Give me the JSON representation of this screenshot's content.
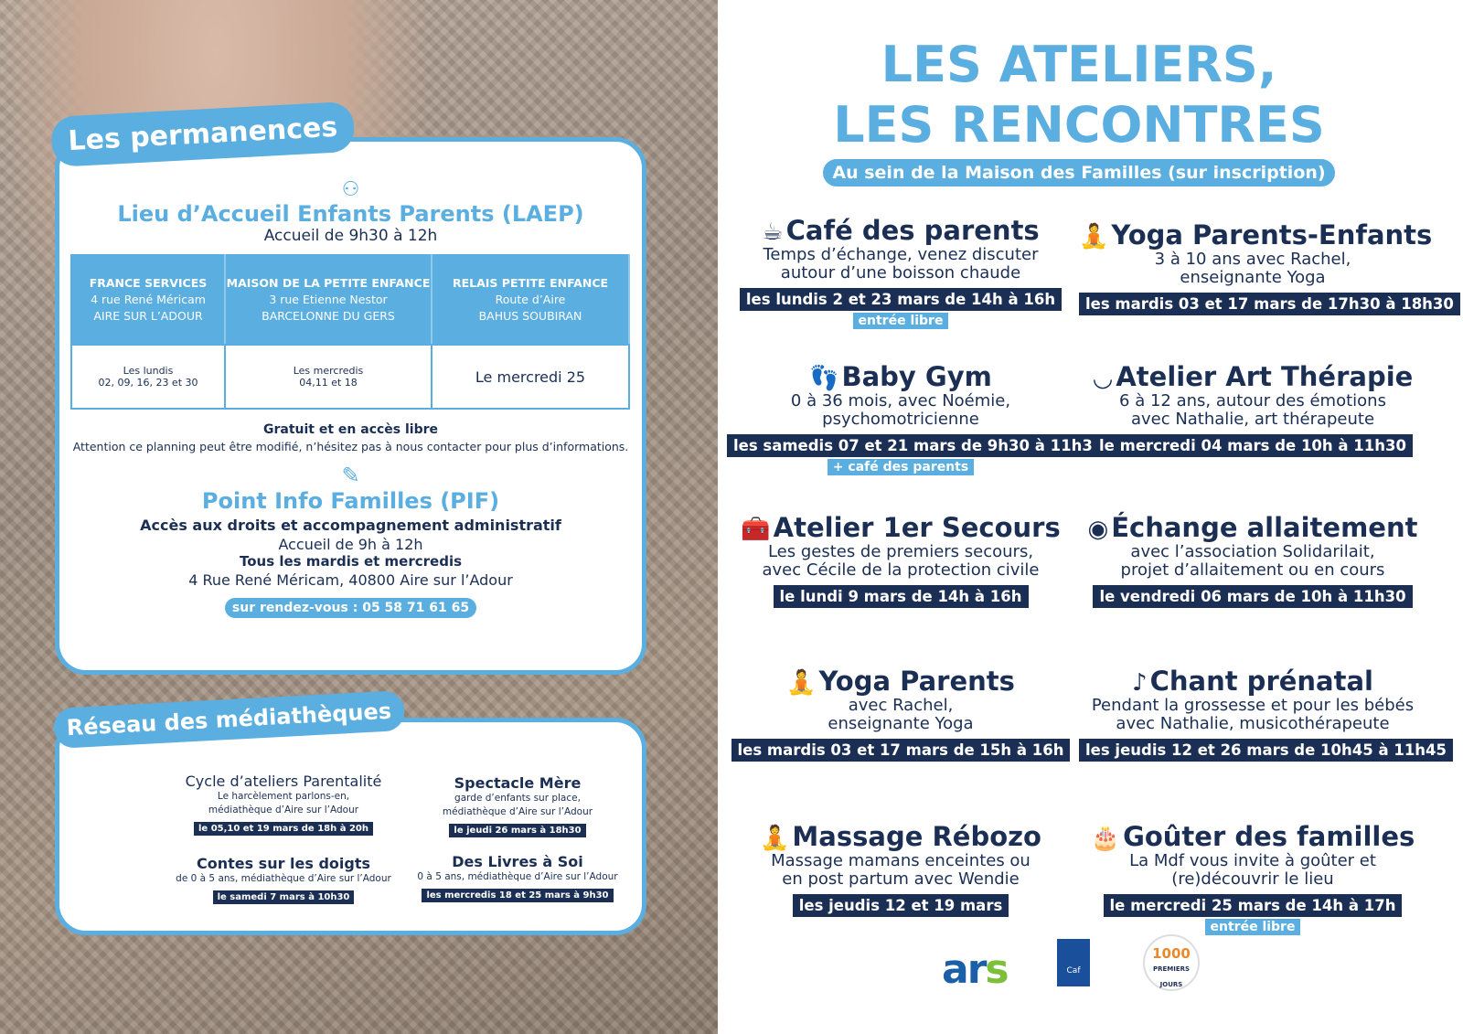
{
  "permanences": {
    "tab": "Les permanences",
    "laep": {
      "icon": "people-network-icon",
      "title": "Lieu d’Accueil Enfants Parents (LAEP)",
      "hours": "Accueil de 9h30 à 12h",
      "columns": [
        {
          "name": "FRANCE SERVICES",
          "address": "4 rue René Méricam",
          "city": "AIRE SUR L’ADOUR",
          "dates_line1": "Les lundis",
          "dates_line2": "02, 09, 16, 23 et 30"
        },
        {
          "name": "MAISON DE LA PETITE ENFANCE",
          "address": "3 rue Etienne Nestor",
          "city": "BARCELONNE DU GERS",
          "dates_line1": "Les mercredis",
          "dates_line2": "04,11 et 18"
        },
        {
          "name": "RELAIS PETITE ENFANCE",
          "address": "Route d’Aire",
          "city": "BAHUS SOUBIRAN",
          "dates_line1": "Le mercredi 25",
          "dates_line2": ""
        }
      ],
      "free": "Gratuit et en accès libre",
      "notice": "Attention ce planning peut être modifié, n’hésitez pas à nous contacter pour plus d’informations."
    },
    "pif": {
      "icon": "document-pen-icon",
      "title": "Point Info Familles (PIF)",
      "subtitle": "Accès aux droits et accompagnement administratif",
      "hours": "Accueil de 9h à 12h",
      "days": "Tous les mardis et mercredis",
      "address": "4 Rue René Méricam, 40800 Aire sur l’Adour",
      "appointment": "sur rendez-vous : 05 58 71 61 65"
    }
  },
  "mediatheques": {
    "tab": "Réseau des médiathèques",
    "items": [
      {
        "title": "Cycle d’ateliers Parentalité",
        "desc1": "Le harcèlement parlons-en,",
        "desc2": "médiathèque d’Aire sur l’Adour",
        "date": "le 05,10 et 19 mars de 18h à 20h"
      },
      {
        "title": "Spectacle Mère",
        "desc1": "garde d’enfants sur place,",
        "desc2": "médiathèque d’Aire sur l’Adour",
        "date": "le jeudi 26 mars à 18h30"
      },
      {
        "title": "Contes sur les doigts",
        "desc1": "de 0 à 5 ans, médiathèque d’Aire sur l’Adour",
        "desc2": "",
        "date": "le samedi 7 mars à 10h30"
      },
      {
        "title": "Des Livres à Soi",
        "desc1": "0 à 5 ans, médiathèque d’Aire sur l’Adour",
        "desc2": "",
        "date": "les mercredis 18 et 25 mars à 9h30"
      }
    ]
  },
  "ateliers": {
    "title1": "LES ATELIERS,",
    "title2": "LES RENCONTRES",
    "subtitle": "Au sein de la Maison des Familles (sur inscription)",
    "items": [
      {
        "icon": "coffee-cup-icon",
        "glyph": "☕",
        "title": "Café des parents",
        "desc1": "Temps d’échange, venez discuter",
        "desc2": "autour d’une boisson chaude",
        "date": "les lundis 2 et 23 mars de 14h à 16h",
        "tag": "entrée libre"
      },
      {
        "icon": "yoga-icon",
        "glyph": "🧘",
        "title": "Yoga Parents-Enfants",
        "desc1": "3 à 10 ans avec Rachel,",
        "desc2": "enseignante Yoga",
        "date": "les mardis 03 et 17 mars de 17h30 à 18h30",
        "tag": ""
      },
      {
        "icon": "footprints-icon",
        "glyph": "👣",
        "title": "Baby Gym",
        "desc1": "0 à 36 mois, avec Noémie,",
        "desc2": "psychomotricienne",
        "date": "les samedis 07 et 21 mars de 9h30 à 11h30",
        "tag": "+ café des parents"
      },
      {
        "icon": "smile-icon",
        "glyph": "◡",
        "title": "Atelier Art Thérapie",
        "desc1": "6 à 12 ans, autour des émotions",
        "desc2": "avec Nathalie, art thérapeute",
        "date": "le mercredi 04 mars de 10h à 11h30",
        "tag": ""
      },
      {
        "icon": "first-aid-kit-icon",
        "glyph": "🧰",
        "title": "Atelier 1er Secours",
        "desc1": "Les gestes de premiers secours,",
        "desc2": "avec Cécile de la protection civile",
        "date": "le lundi 9 mars de 14h à 16h",
        "tag": ""
      },
      {
        "icon": "breastfeeding-icon",
        "glyph": "◉",
        "title": "Échange allaitement",
        "desc1": "avec l’association Solidarilait,",
        "desc2": "projet d’allaitement ou en cours",
        "date": "le vendredi 06 mars de 10h à 11h30",
        "tag": ""
      },
      {
        "icon": "yoga-icon",
        "glyph": "🧘",
        "title": "Yoga Parents",
        "desc1": "avec Rachel,",
        "desc2": "enseignante Yoga",
        "date": "les mardis 03 et 17 mars de 15h à 16h",
        "tag": ""
      },
      {
        "icon": "music-note-icon",
        "glyph": "♪",
        "title": "Chant prénatal",
        "desc1": "Pendant la grossesse et pour les bébés",
        "desc2": "avec Nathalie, musicothérapeute",
        "date": "les jeudis 12 et 26 mars de 10h45 à 11h45",
        "tag": ""
      },
      {
        "icon": "massage-icon",
        "glyph": "🧘",
        "title": "Massage Rébozo",
        "desc1": "Massage mamans enceintes ou",
        "desc2": "en post partum avec Wendie",
        "date": "les jeudis 12 et 19 mars",
        "tag": ""
      },
      {
        "icon": "cake-icon",
        "glyph": "🎂",
        "title": "Goûter des familles",
        "desc1": "La Mdf vous invite à goûter et",
        "desc2": "(re)découvrir le lieu",
        "date": "le mercredi 25 mars de 14h à 17h",
        "tag": "entrée libre"
      }
    ]
  },
  "logos": {
    "ars": "ars",
    "caf": "Caf",
    "mille": "1000 PREMIERS JOURS"
  },
  "colors": {
    "navy": "#1b2f55",
    "blue": "#5aaee0"
  }
}
